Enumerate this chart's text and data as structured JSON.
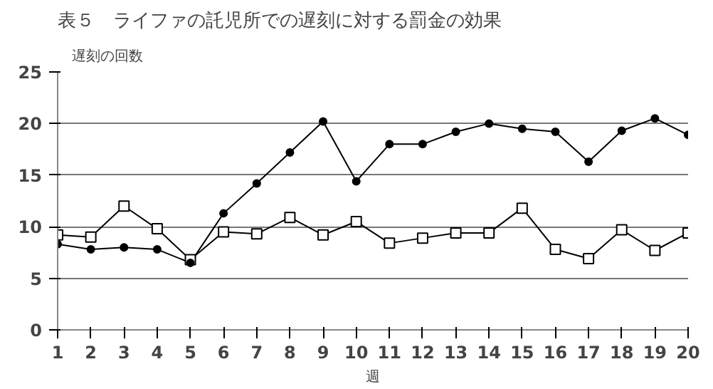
{
  "chart_data": {
    "type": "line",
    "title": "表５　ライファの託児所での遅刻に対する罰金の効果",
    "ylabel": "遅刻の回数",
    "xlabel": "週",
    "x": [
      1,
      2,
      3,
      4,
      5,
      6,
      7,
      8,
      9,
      10,
      11,
      12,
      13,
      14,
      15,
      16,
      17,
      18,
      19,
      20
    ],
    "xlim": [
      1,
      20
    ],
    "xticks": [
      1,
      2,
      3,
      4,
      5,
      6,
      7,
      8,
      9,
      10,
      11,
      12,
      13,
      14,
      15,
      16,
      17,
      18,
      19,
      20
    ],
    "ylim": [
      0,
      25
    ],
    "yticks": [
      0,
      5,
      10,
      15,
      20,
      25
    ],
    "grid": "y",
    "line_style": "solid",
    "series": [
      {
        "color": "#000000",
        "marker": "circle",
        "values": [
          8.3,
          7.8,
          8,
          7.8,
          6.5,
          11.3,
          14.2,
          17.2,
          20.2,
          14.4,
          18,
          18,
          19.2,
          20,
          19.5,
          19.2,
          16.3,
          19.3,
          20.5,
          18.9
        ]
      },
      {
        "color": "#000000",
        "marker": "square",
        "values": [
          9.2,
          9,
          12,
          9.8,
          6.8,
          9.5,
          9.3,
          10.9,
          9.2,
          10.5,
          8.4,
          8.9,
          9.4,
          9.4,
          11.8,
          7.8,
          6.9,
          9.7,
          7.7,
          9.4
        ]
      }
    ]
  }
}
